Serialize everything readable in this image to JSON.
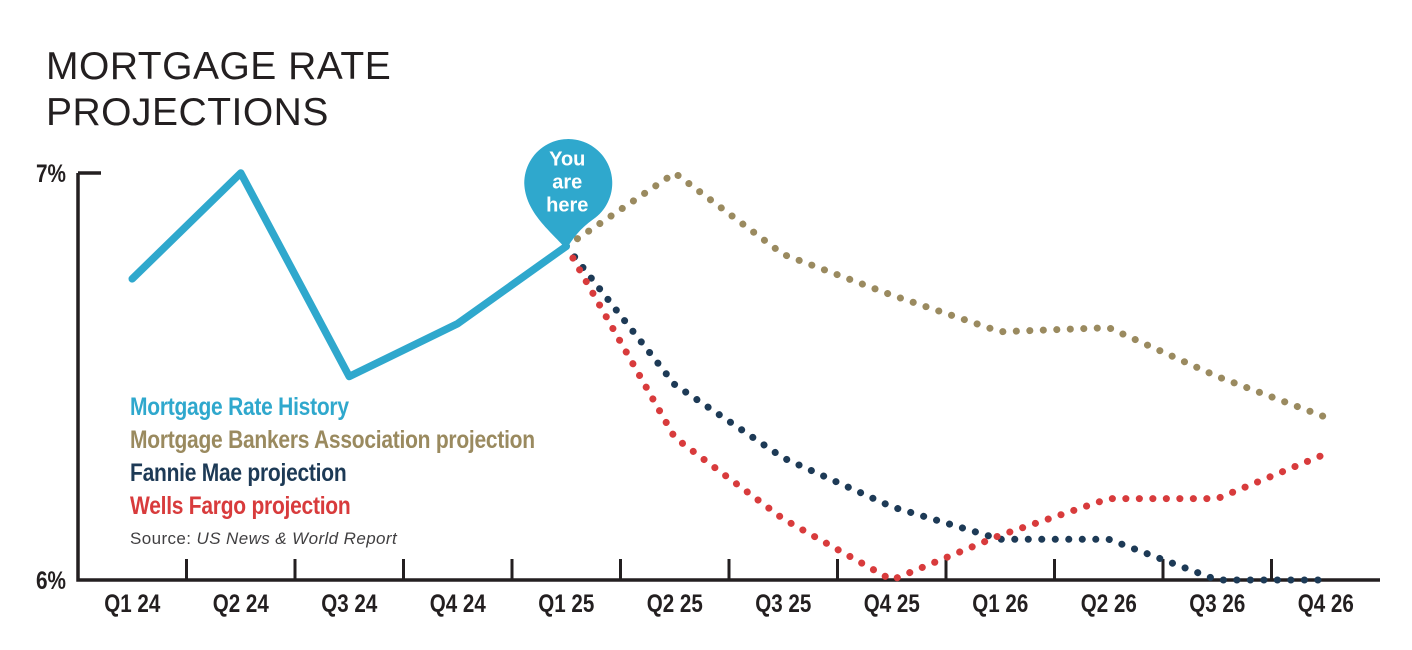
{
  "title": {
    "lines": [
      "MORTGAGE RATE",
      "PROJECTIONS"
    ]
  },
  "source": {
    "prefix": "Source:",
    "name": "US News & World Report"
  },
  "marker": {
    "label_lines": [
      "You",
      "are",
      "here"
    ],
    "color": "#2fa8cd",
    "text_color": "#ffffff"
  },
  "colors": {
    "history_blue": "#2fa8cd",
    "mba_tan": "#9a8a5f",
    "fannie_navy": "#1d3a56",
    "wells_red": "#d83b3c",
    "axis_black": "#231f20"
  },
  "chart_data": {
    "type": "line",
    "categories": [
      "Q1 24",
      "Q2 24",
      "Q3 24",
      "Q4 24",
      "Q1 25",
      "Q2 25",
      "Q3 25",
      "Q4 25",
      "Q1 26",
      "Q2 26",
      "Q3 26",
      "Q4 26"
    ],
    "ylim": [
      6,
      7
    ],
    "y_ticks": [
      {
        "value": 7,
        "label": "7%"
      },
      {
        "value": 6,
        "label": "6%"
      }
    ],
    "grid": false,
    "legend_position": "inside-left",
    "series": [
      {
        "id": "mortgage-rate-history",
        "name": "Mortgage Rate History",
        "color": "#2fa8cd",
        "style": "solid",
        "start_index": 0,
        "values": [
          6.74,
          7.0,
          6.5,
          6.63,
          6.82
        ]
      },
      {
        "id": "mba-projection",
        "name": "Mortgage Bankers Association projection",
        "color": "#9a8a5f",
        "style": "dotted",
        "start_index": 4,
        "values": [
          6.82,
          7.0,
          6.8,
          6.7,
          6.61,
          6.62,
          6.5,
          6.4
        ]
      },
      {
        "id": "fannie-mae-projection",
        "name": "Fannie Mae projection",
        "color": "#1d3a56",
        "style": "dotted",
        "start_index": 4,
        "values": [
          6.82,
          6.48,
          6.3,
          6.18,
          6.1,
          6.1,
          6.0,
          6.0
        ]
      },
      {
        "id": "wells-fargo-projection",
        "name": "Wells Fargo projection",
        "color": "#d83b3c",
        "style": "dotted",
        "start_index": 4,
        "values": [
          6.82,
          6.35,
          6.15,
          6.0,
          6.11,
          6.2,
          6.2,
          6.31
        ]
      }
    ],
    "marker_annotation": {
      "text": "You are here",
      "category": "Q1 25",
      "value": 6.82
    }
  }
}
